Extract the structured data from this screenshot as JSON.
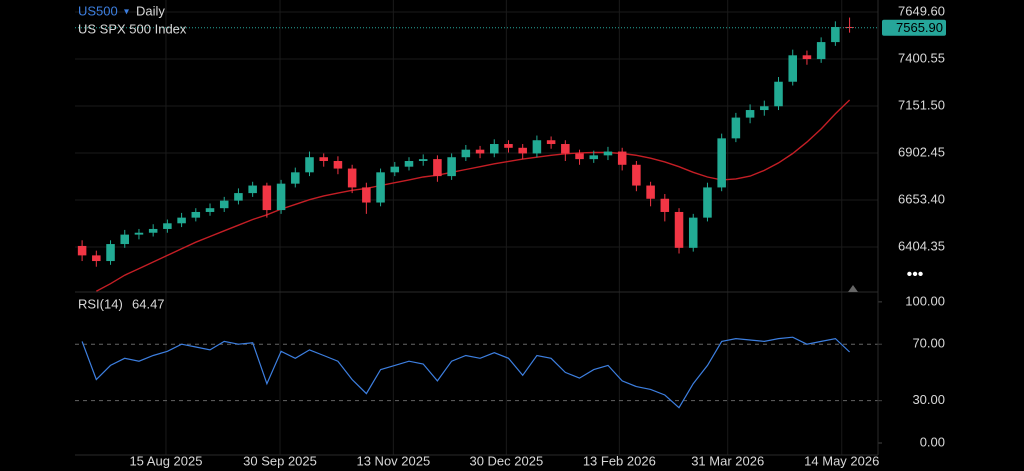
{
  "chart_data": [
    {
      "type": "candlestick",
      "title": "US500",
      "interval": "Daily",
      "subtitle": "US SPX 500 Index",
      "x": [
        2,
        6,
        10,
        14,
        18,
        22,
        26,
        30,
        34,
        38,
        42,
        46,
        50,
        54,
        58,
        62,
        66,
        70,
        74,
        78,
        82,
        86,
        90,
        94,
        98,
        102,
        106,
        110,
        114,
        118,
        122,
        126,
        130,
        134,
        138,
        142,
        146,
        150,
        154,
        158,
        162,
        166,
        170,
        174,
        178,
        182,
        186,
        190,
        194,
        198,
        202,
        206,
        210,
        214,
        218
      ],
      "xlim": [
        0,
        226
      ],
      "xticks": [
        {
          "value": 25.6,
          "label": "15 Aug 2025"
        },
        {
          "value": 57.7,
          "label": "30 Sep 2025"
        },
        {
          "value": 89.6,
          "label": "13 Nov 2025"
        },
        {
          "value": 121.4,
          "label": "30 Dec 2025"
        },
        {
          "value": 153.2,
          "label": "13 Feb 2026"
        },
        {
          "value": 183.7,
          "label": "31 Mar 2026"
        },
        {
          "value": 215.8,
          "label": "14 May 2026"
        }
      ],
      "ylim": [
        6166,
        7713
      ],
      "yticks": [
        6404.35,
        {
          "value": 6653.4,
          "label": "6653.40"
        },
        6902.45,
        {
          "value": 7151.5,
          "label": "7151.50"
        },
        7400.55,
        {
          "value": 7649.6,
          "label": "7649.60"
        }
      ],
      "grid": true,
      "up_color": "#22ab94",
      "down_color": "#f23645",
      "open": [
        6410,
        6360,
        6330,
        6420,
        6470,
        6480,
        6500,
        6530,
        6560,
        6590,
        6610,
        6650,
        6690,
        6730,
        6600,
        6740,
        6800,
        6880,
        6860,
        6820,
        6720,
        6640,
        6800,
        6830,
        6860,
        6870,
        6780,
        6880,
        6920,
        6900,
        6950,
        6930,
        6900,
        6970,
        6950,
        6900,
        6870,
        6890,
        6910,
        6840,
        6730,
        6660,
        6590,
        6400,
        6560,
        6720,
        6980,
        7090,
        7130,
        7150,
        7280,
        7420,
        7400,
        7490,
        7570
      ],
      "high": [
        6440,
        6385,
        6440,
        6495,
        6500,
        6525,
        6550,
        6585,
        6610,
        6635,
        6670,
        6715,
        6750,
        6745,
        6760,
        6825,
        6910,
        6900,
        6885,
        6840,
        6745,
        6820,
        6855,
        6880,
        6895,
        6890,
        6900,
        6945,
        6940,
        6975,
        6970,
        6950,
        6995,
        6990,
        6970,
        6920,
        6915,
        6935,
        6930,
        6860,
        6750,
        6685,
        6610,
        6580,
        6745,
        7005,
        7115,
        7160,
        7180,
        7305,
        7450,
        7445,
        7515,
        7600,
        7620
      ],
      "low": [
        6330,
        6300,
        6310,
        6400,
        6445,
        6460,
        6480,
        6510,
        6540,
        6570,
        6590,
        6630,
        6670,
        6560,
        6580,
        6720,
        6780,
        6830,
        6790,
        6690,
        6580,
        6620,
        6780,
        6810,
        6835,
        6750,
        6760,
        6860,
        6875,
        6880,
        6905,
        6870,
        6880,
        6925,
        6860,
        6840,
        6850,
        6865,
        6810,
        6700,
        6620,
        6540,
        6370,
        6380,
        6540,
        6700,
        6960,
        7060,
        7100,
        7130,
        7260,
        7370,
        7380,
        7470,
        7540
      ],
      "close": [
        6360,
        6330,
        6420,
        6470,
        6480,
        6500,
        6530,
        6560,
        6590,
        6610,
        6650,
        6690,
        6730,
        6600,
        6740,
        6800,
        6880,
        6860,
        6820,
        6720,
        6640,
        6800,
        6830,
        6860,
        6870,
        6780,
        6880,
        6920,
        6900,
        6950,
        6930,
        6900,
        6970,
        6950,
        6900,
        6870,
        6890,
        6910,
        6840,
        6730,
        6660,
        6590,
        6400,
        6560,
        6720,
        6980,
        7090,
        7130,
        7150,
        7280,
        7420,
        7400,
        7490,
        7570,
        7565.9
      ],
      "overlays": [
        {
          "color": "#c41e25",
          "values": [
            null,
            6170,
            6210,
            6255,
            6290,
            6325,
            6360,
            6395,
            6430,
            6460,
            6490,
            6520,
            6550,
            6575,
            6605,
            6630,
            6655,
            6675,
            6690,
            6705,
            6715,
            6730,
            6745,
            6760,
            6775,
            6785,
            6800,
            6815,
            6830,
            6845,
            6858,
            6870,
            6880,
            6890,
            6898,
            6903,
            6905,
            6905,
            6900,
            6890,
            6875,
            6855,
            6830,
            6800,
            6775,
            6760,
            6765,
            6780,
            6810,
            6850,
            6900,
            6960,
            7030,
            7110,
            7183
          ]
        }
      ],
      "last_price": {
        "value": 7565.9,
        "label": "7565.90"
      },
      "last_price_color": "#26a69a"
    },
    {
      "type": "line",
      "x": [
        2,
        6,
        10,
        14,
        18,
        22,
        26,
        30,
        34,
        38,
        42,
        46,
        50,
        54,
        58,
        62,
        66,
        70,
        74,
        78,
        82,
        86,
        90,
        94,
        98,
        102,
        106,
        110,
        114,
        118,
        122,
        126,
        130,
        134,
        138,
        142,
        146,
        150,
        154,
        158,
        162,
        166,
        170,
        174,
        178,
        182,
        186,
        190,
        194,
        198,
        202,
        206,
        210,
        214,
        218
      ],
      "xlim": [
        0,
        226
      ],
      "ylim": [
        -8.5,
        107
      ],
      "yticks": [
        {
          "value": 0,
          "label": "0.00"
        },
        {
          "value": 30,
          "label": "30.00"
        },
        {
          "value": 70,
          "label": "70.00"
        },
        {
          "value": 100,
          "label": "100.00"
        }
      ],
      "dashed_levels": [
        70,
        30
      ],
      "series": [
        {
          "name": "RSI(14)",
          "color": "#3d7fe0",
          "values": [
            72,
            45,
            55,
            60,
            58,
            62,
            65,
            70,
            68,
            66,
            72,
            70,
            71,
            42,
            65,
            60,
            66,
            62,
            58,
            45,
            35,
            52,
            55,
            58,
            56,
            44,
            58,
            62,
            60,
            64,
            60,
            48,
            62,
            60,
            50,
            46,
            52,
            55,
            44,
            40,
            38,
            34,
            25,
            42,
            55,
            72,
            74,
            73,
            72,
            74,
            75,
            70,
            72,
            74,
            64.47
          ]
        }
      ]
    }
  ]
}
